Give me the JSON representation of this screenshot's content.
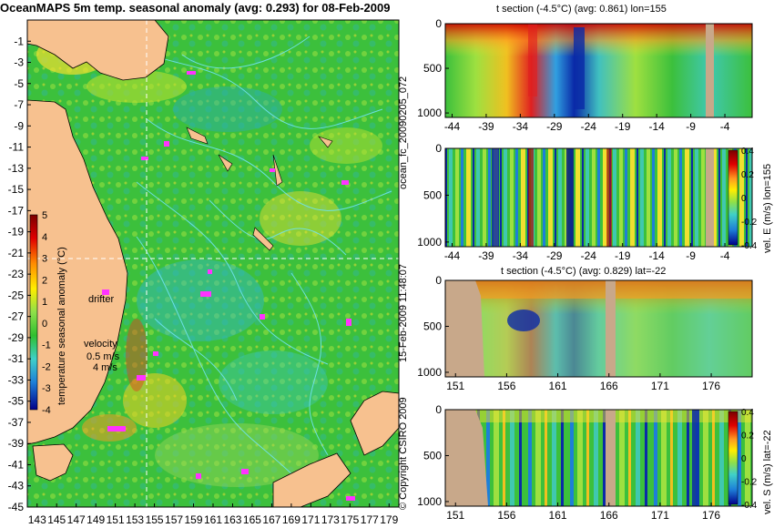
{
  "chart_data": [
    {
      "type": "heatmap",
      "title": "OceanMAPS 5m temp. seasonal anomaly (avg: 0.293) for 08-Feb-2009",
      "x_ticks": [
        "143",
        "145",
        "147",
        "149",
        "151",
        "153",
        "155",
        "157",
        "159",
        "161",
        "163",
        "165",
        "167",
        "169",
        "171",
        "173",
        "175",
        "177",
        "179"
      ],
      "y_ticks": [
        "-1",
        "-3",
        "-5",
        "-7",
        "-9",
        "-11",
        "-13",
        "-15",
        "-17",
        "-19",
        "-21",
        "-23",
        "-25",
        "-27",
        "-29",
        "-31",
        "-33",
        "-35",
        "-37",
        "-39",
        "-41",
        "-43",
        "-45"
      ],
      "xlim": [
        142,
        180
      ],
      "ylim": [
        -45,
        1
      ],
      "crosshair": {
        "lon": 155,
        "lat": -22
      },
      "colorbar": {
        "label": "temperature seasonal anomaly (°C)",
        "ticks": [
          "5",
          "4",
          "3",
          "2",
          "1",
          "0",
          "-1",
          "-2",
          "-3",
          "-4"
        ],
        "range": [
          -4,
          5
        ]
      },
      "annotations": {
        "drifter": "drifter",
        "velocity": "velocity",
        "velocity_value": "0.5 m/s",
        "velocity_alt": "4 m/s"
      }
    },
    {
      "type": "heatmap",
      "title": "t section (-4.5°C) (avg: 0.861) lon=155",
      "x_ticks": [
        "-44",
        "-39",
        "-34",
        "-29",
        "-24",
        "-19",
        "-14",
        "-9",
        "-4"
      ],
      "y_ticks": [
        "0",
        "500",
        "1000"
      ],
      "xlim": [
        -45,
        0
      ],
      "ylim": [
        1050,
        0
      ]
    },
    {
      "type": "heatmap",
      "title": "",
      "x_ticks": [
        "-44",
        "-39",
        "-34",
        "-29",
        "-24",
        "-19",
        "-14",
        "-9",
        "-4"
      ],
      "y_ticks": [
        "0",
        "500",
        "1000"
      ],
      "xlim": [
        -45,
        0
      ],
      "ylim": [
        1050,
        0
      ],
      "colorbar": {
        "label": "vel. E (m/s) lon=155",
        "ticks": [
          "0.4",
          "0.2",
          "0",
          "-0.2",
          "-0.4"
        ],
        "range": [
          -0.4,
          0.4
        ]
      }
    },
    {
      "type": "heatmap",
      "title": "t section (-4.5°C) (avg: 0.829) lat=-22",
      "x_ticks": [
        "151",
        "156",
        "161",
        "166",
        "171",
        "176"
      ],
      "y_ticks": [
        "0",
        "500",
        "1000"
      ],
      "xlim": [
        150,
        180
      ],
      "ylim": [
        1050,
        0
      ]
    },
    {
      "type": "heatmap",
      "title": "",
      "x_ticks": [
        "151",
        "156",
        "161",
        "166",
        "171",
        "176"
      ],
      "y_ticks": [
        "0",
        "500",
        "1000"
      ],
      "xlim": [
        150,
        180
      ],
      "ylim": [
        1050,
        0
      ],
      "colorbar": {
        "label": "vel. S (m/s) lat=-22",
        "ticks": [
          "0.4",
          "0.2",
          "0",
          "-0.2",
          "-0.4"
        ],
        "range": [
          -0.4,
          0.4
        ]
      }
    }
  ],
  "side_labels": {
    "run": "ocean_fc_20090205_072",
    "timestamp": "15-Feb-2009 11:48:07",
    "copyright": "© Copyright CSIRO 2009"
  },
  "colors": {
    "land": "#f7c18f",
    "section_land": "#c8a88a",
    "contour": "#70e3f0",
    "drifter": "#ff33ff",
    "ocean_base": "#3cc03c"
  }
}
